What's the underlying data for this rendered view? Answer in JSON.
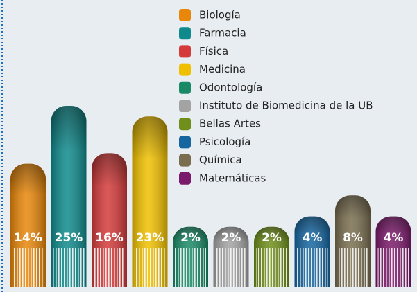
{
  "chart_data": {
    "type": "bar",
    "categories": [
      "Biología",
      "Farmacia",
      "Física",
      "Medicina",
      "Odontología",
      "Instituto de Biomedicina de la UB",
      "Bellas Artes",
      "Psicología",
      "Química",
      "Matemáticas"
    ],
    "values": [
      14,
      25,
      16,
      23,
      2,
      2,
      2,
      4,
      8,
      4
    ],
    "value_labels": [
      "14%",
      "25%",
      "16%",
      "23%",
      "2%",
      "2%",
      "2%",
      "4%",
      "8%",
      "4%"
    ],
    "colors": [
      "#e8870a",
      "#0f8a8c",
      "#d43a3a",
      "#f0c000",
      "#1a8a66",
      "#a3a3a3",
      "#6f8f1a",
      "#1565a0",
      "#7a6e50",
      "#7a1a6a"
    ]
  }
}
